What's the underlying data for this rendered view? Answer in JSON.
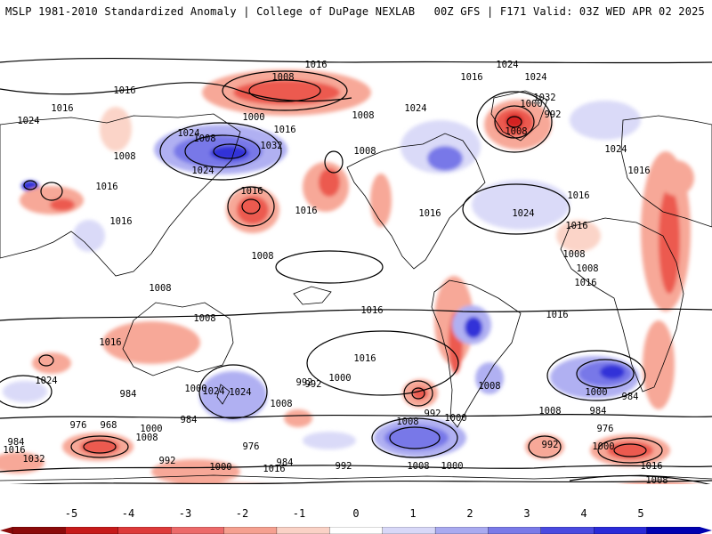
{
  "header": {
    "title": "MSLP 1981-2010 Standardized Anomaly | College of DuPage NEXLAB",
    "run_info": "00Z GFS | F171 Valid: 03Z WED APR 02 2025"
  },
  "colorbar": {
    "ticks": [
      "-5",
      "-4",
      "-3",
      "-2",
      "-1",
      "0",
      "1",
      "2",
      "3",
      "4",
      "5"
    ],
    "colors": [
      "#8b0a0a",
      "#c61a1a",
      "#dd3a3a",
      "#ec6a6a",
      "#f5a090",
      "#fad2c6",
      "#ffffff",
      "#d8d8f8",
      "#a9aaf0",
      "#7a7ae8",
      "#4a4ae0",
      "#2a2ad8",
      "#0000b0"
    ]
  },
  "anomaly_colors": {
    "red_strong": "#d42020",
    "red_mid": "#ec5a50",
    "red_light": "#f7a898",
    "red_faint": "#fbd4c8",
    "blue_strong": "#3030d8",
    "blue_mid": "#7878e8",
    "blue_light": "#b0b0f2",
    "blue_faint": "#dadaf8"
  },
  "isobar_labels": [
    "1016",
    "1016",
    "1008",
    "1024",
    "1024",
    "1016",
    "1024",
    "1008",
    "1016",
    "1008",
    "1024",
    "1032",
    "1016",
    "1024",
    "1000",
    "1016",
    "1016",
    "1008",
    "1008",
    "1024",
    "1016",
    "1016",
    "1016",
    "1024",
    "1032",
    "1000",
    "992",
    "1008",
    "1024",
    "1016",
    "1016",
    "1016",
    "1008",
    "1008",
    "1008",
    "1008",
    "1008",
    "1016",
    "1016",
    "1016",
    "1024",
    "1024",
    "1024",
    "1016",
    "1016",
    "1008",
    "992",
    "1000",
    "992",
    "1000",
    "1008",
    "1008",
    "1000",
    "992",
    "1000",
    "984",
    "984",
    "984",
    "976",
    "968",
    "984",
    "1000",
    "1008",
    "976",
    "1016",
    "1032",
    "992",
    "1000",
    "1016",
    "984",
    "992",
    "1008",
    "1000",
    "1008",
    "992",
    "984",
    "1000",
    "1008",
    "976",
    "1016"
  ]
}
